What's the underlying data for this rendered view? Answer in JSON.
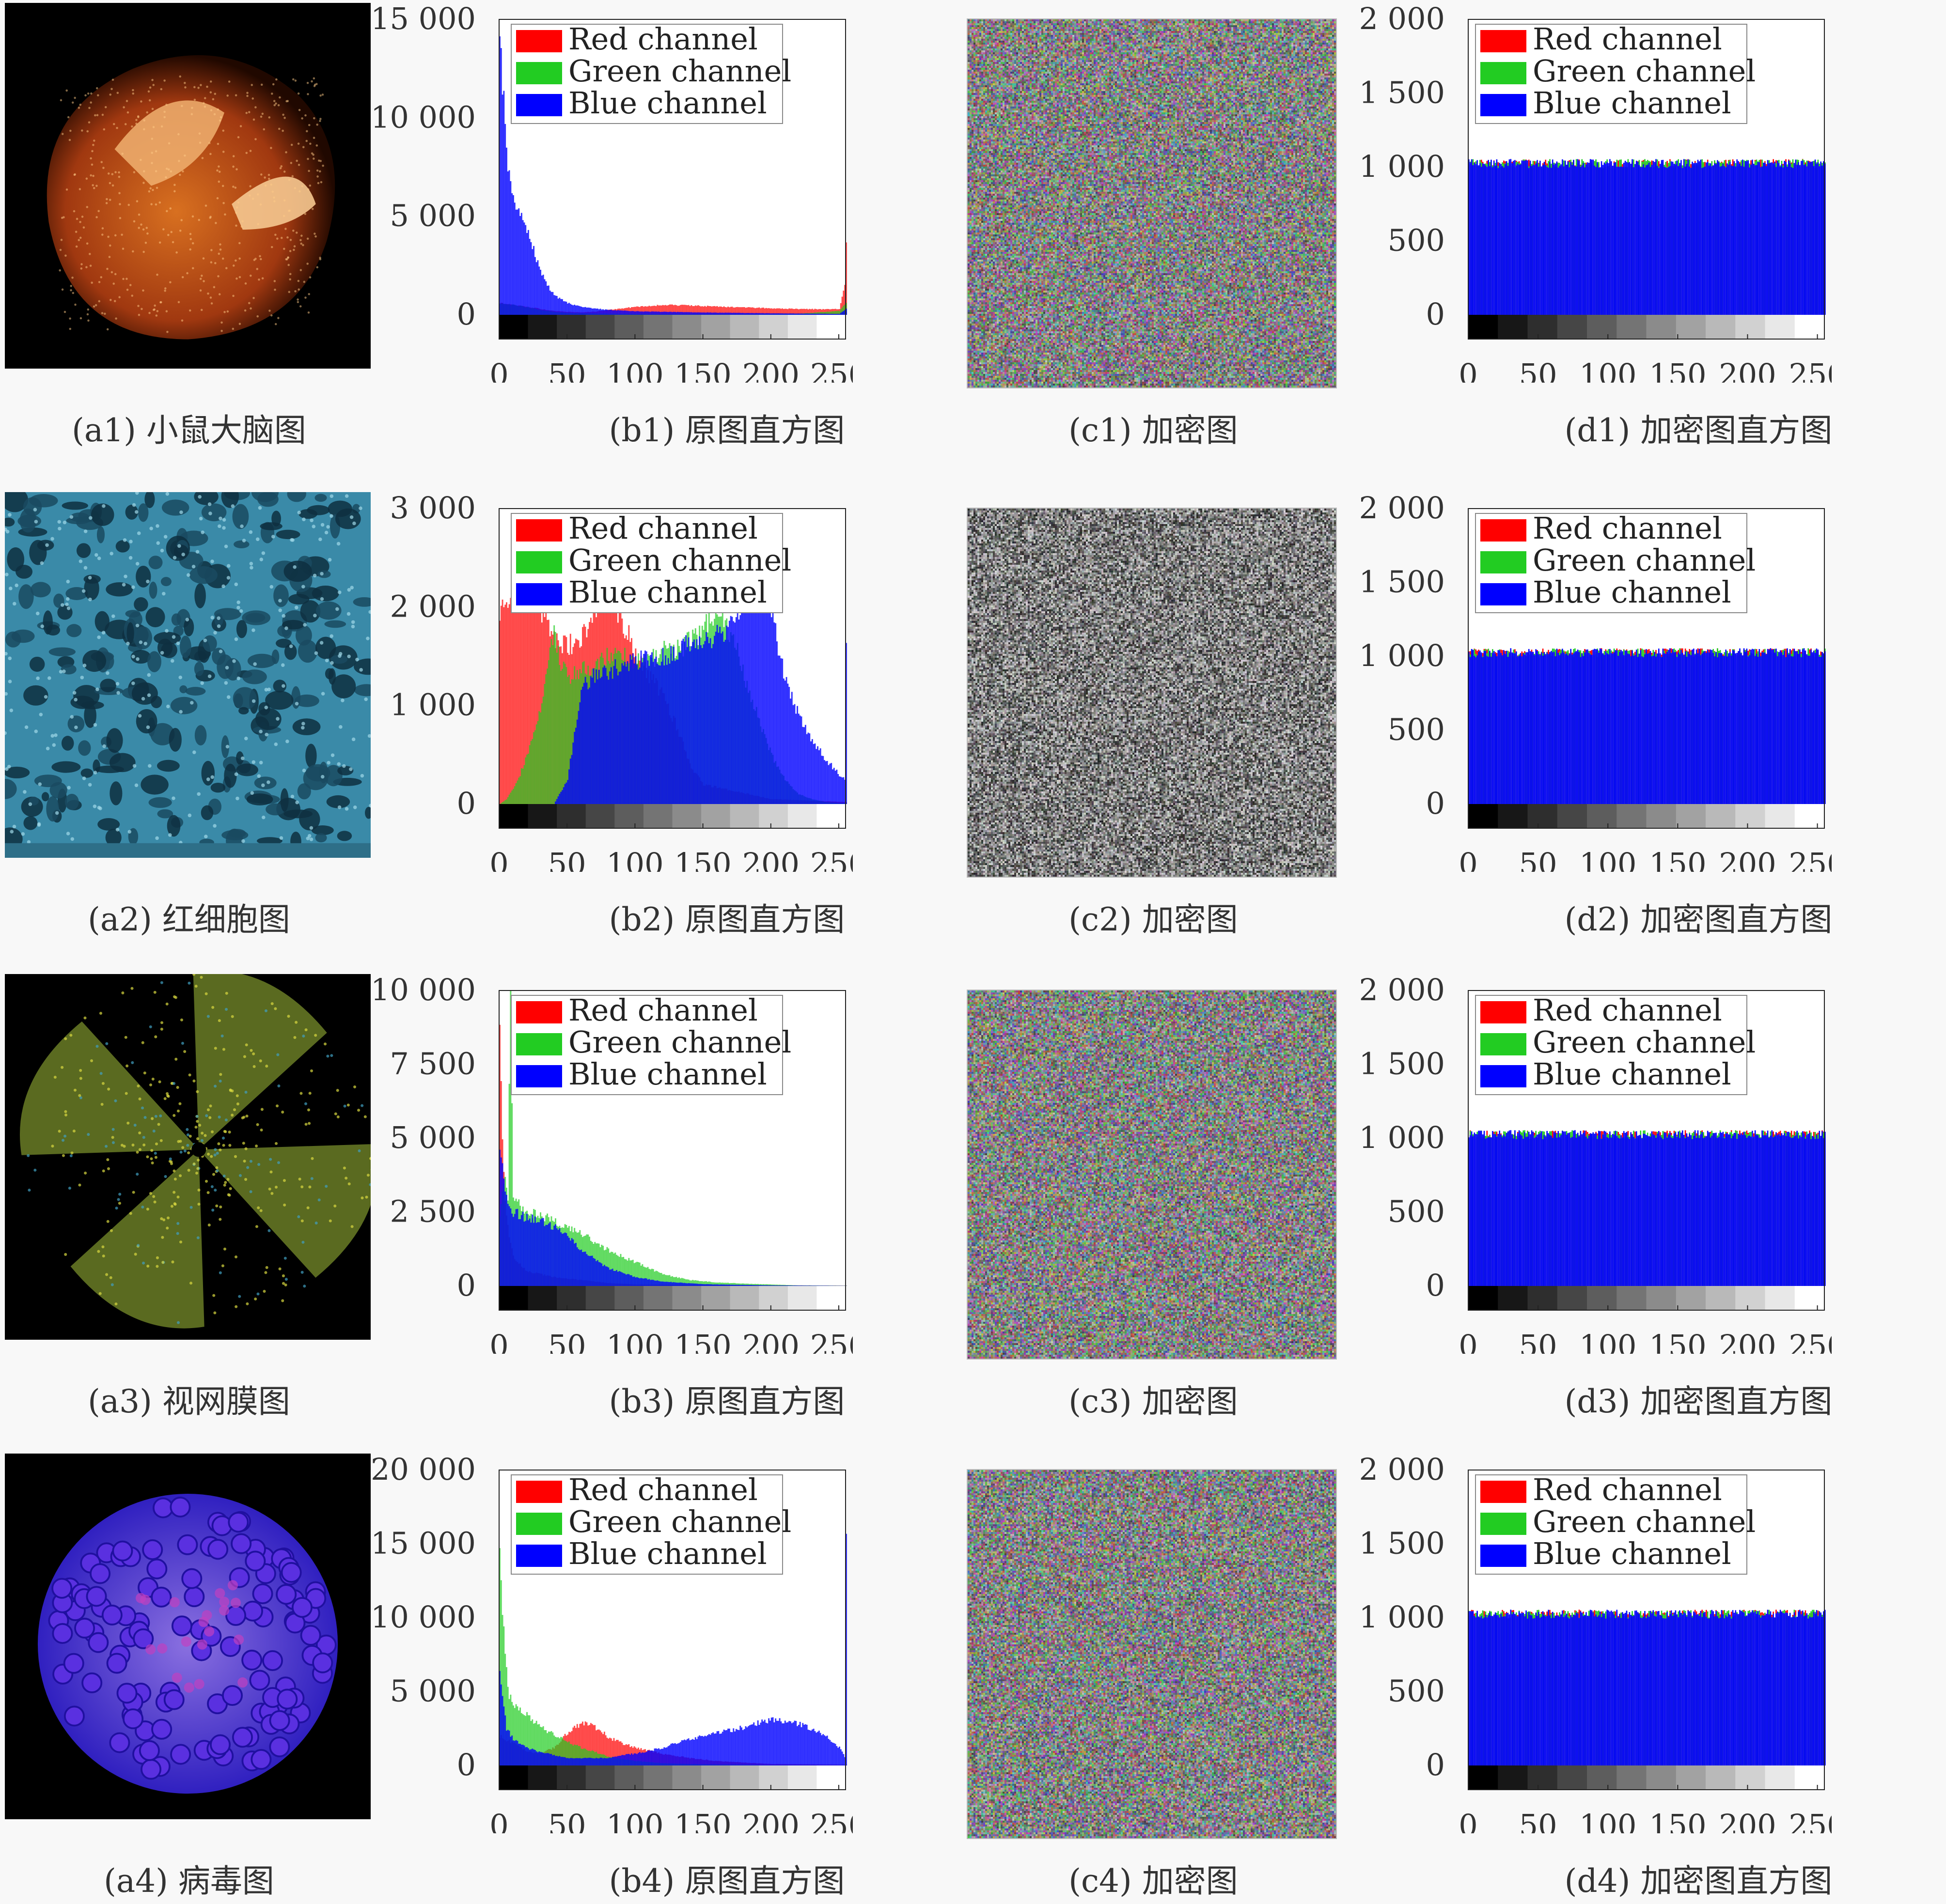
{
  "legend_labels": [
    "Red channel",
    "Green channel",
    "Blue channel"
  ],
  "legend_colors": [
    "#ff0000",
    "#22cc22",
    "#0000ff"
  ],
  "captions": [
    {
      "a": "(a1) 小鼠大脑图",
      "b": "(b1) 原图直方图",
      "c": "(c1) 加密图",
      "d": "(d1) 加密图直方图"
    },
    {
      "a": "(a2) 红细胞图",
      "b": "(b2) 原图直方图",
      "c": "(c2) 加密图",
      "d": "(d2) 加密图直方图"
    },
    {
      "a": "(a3) 视网膜图",
      "b": "(b3) 原图直方图",
      "c": "(c3) 加密图",
      "d": "(d3) 加密图直方图"
    },
    {
      "a": "(a4) 病毒图",
      "b": "(b4) 原图直方图",
      "c": "(c4) 加密图",
      "d": "(d4) 加密图直方图"
    }
  ],
  "chart_data": [
    {
      "id": "b1",
      "type": "bar",
      "xlim": [
        0,
        255
      ],
      "ylim": [
        0,
        15000
      ],
      "xticks": [
        0,
        50,
        100,
        150,
        200,
        250
      ],
      "xtick_labels": [
        "0",
        "50",
        "100",
        "150",
        "200",
        "250"
      ],
      "yticks": [
        0,
        5000,
        10000,
        15000
      ],
      "ytick_labels": [
        "0",
        "5 000",
        "10 000",
        "15 000"
      ],
      "legend": [
        "Red channel",
        "Green channel",
        "Blue channel"
      ],
      "series": [
        {
          "name": "Red channel",
          "x": [
            0,
            10,
            20,
            30,
            40,
            50,
            60,
            70,
            80,
            100,
            120,
            140,
            160,
            180,
            200,
            220,
            240,
            250,
            254,
            255
          ],
          "values": [
            600,
            500,
            400,
            300,
            200,
            150,
            130,
            160,
            250,
            400,
            500,
            480,
            420,
            380,
            330,
            300,
            280,
            300,
            1500,
            3500
          ]
        },
        {
          "name": "Green channel",
          "x": [
            0,
            10,
            20,
            30,
            40,
            50,
            60,
            80,
            100,
            140,
            180,
            220,
            250,
            255
          ],
          "values": [
            600,
            500,
            400,
            250,
            150,
            100,
            80,
            60,
            50,
            40,
            40,
            60,
            200,
            600
          ]
        },
        {
          "name": "Blue channel",
          "x": [
            0,
            2,
            5,
            8,
            10,
            15,
            20,
            25,
            30,
            35,
            40,
            50,
            60,
            80,
            100,
            150,
            200,
            250,
            255
          ],
          "values": [
            15000,
            12000,
            8000,
            6500,
            5700,
            5000,
            4300,
            3300,
            2200,
            1500,
            1000,
            600,
            400,
            250,
            180,
            120,
            80,
            50,
            300
          ]
        }
      ]
    },
    {
      "id": "d1",
      "type": "bar",
      "xlim": [
        0,
        255
      ],
      "ylim": [
        0,
        2000
      ],
      "xticks": [
        0,
        50,
        100,
        150,
        200,
        250
      ],
      "xtick_labels": [
        "0",
        "50",
        "100",
        "150",
        "200",
        "250"
      ],
      "yticks": [
        0,
        500,
        1000,
        1500,
        2000
      ],
      "ytick_labels": [
        "0",
        "500",
        "1 000",
        "1 500",
        "2 000"
      ],
      "legend": [
        "Red channel",
        "Green channel",
        "Blue channel"
      ],
      "series": [
        {
          "name": "Red channel",
          "x": [
            0,
            255
          ],
          "values": [
            1024,
            1024
          ]
        },
        {
          "name": "Green channel",
          "x": [
            0,
            255
          ],
          "values": [
            1024,
            1024
          ]
        },
        {
          "name": "Blue channel",
          "x": [
            0,
            255
          ],
          "values": [
            1024,
            1024
          ]
        }
      ]
    },
    {
      "id": "b2",
      "type": "bar",
      "xlim": [
        0,
        255
      ],
      "ylim": [
        0,
        3000
      ],
      "xticks": [
        0,
        50,
        100,
        150,
        200,
        250
      ],
      "xtick_labels": [
        "0",
        "50",
        "100",
        "150",
        "200",
        "250"
      ],
      "yticks": [
        0,
        1000,
        2000,
        3000
      ],
      "ytick_labels": [
        "0",
        "1 000",
        "2 000",
        "3 000"
      ],
      "legend": [
        "Red channel",
        "Green channel",
        "Blue channel"
      ],
      "series": [
        {
          "name": "Red channel",
          "x": [
            0,
            5,
            10,
            20,
            25,
            30,
            35,
            40,
            45,
            50,
            55,
            60,
            65,
            70,
            75,
            80,
            85,
            90,
            95,
            100,
            105,
            110,
            115,
            120,
            130,
            140,
            150,
            200,
            255
          ],
          "values": [
            2000,
            2100,
            2100,
            2100,
            2100,
            2000,
            1900,
            1700,
            1650,
            1600,
            1650,
            1700,
            1800,
            2000,
            2100,
            2100,
            2000,
            1850,
            1700,
            1550,
            1400,
            1300,
            1200,
            1100,
            800,
            400,
            200,
            50,
            20
          ]
        },
        {
          "name": "Green channel",
          "x": [
            0,
            5,
            10,
            15,
            20,
            25,
            30,
            35,
            40,
            45,
            50,
            60,
            70,
            80,
            90,
            100,
            110,
            120,
            130,
            140,
            150,
            155,
            160,
            165,
            170,
            175,
            180,
            190,
            200,
            210,
            220,
            230,
            240,
            250,
            255
          ],
          "values": [
            0,
            50,
            150,
            300,
            500,
            700,
            1000,
            1300,
            1800,
            1400,
            1300,
            1350,
            1400,
            1500,
            1500,
            1450,
            1450,
            1550,
            1550,
            1650,
            1750,
            1900,
            2000,
            1900,
            1700,
            1550,
            1300,
            900,
            500,
            250,
            100,
            50,
            20,
            10,
            10
          ]
        },
        {
          "name": "Blue channel",
          "x": [
            0,
            20,
            40,
            50,
            60,
            70,
            80,
            90,
            100,
            110,
            120,
            130,
            140,
            150,
            160,
            170,
            180,
            190,
            195,
            200,
            210,
            220,
            230,
            240,
            250,
            254,
            255
          ],
          "values": [
            0,
            0,
            0,
            250,
            1200,
            1300,
            1350,
            1400,
            1450,
            1500,
            1500,
            1550,
            1650,
            1700,
            1700,
            1800,
            2000,
            2200,
            2150,
            1900,
            1300,
            900,
            650,
            450,
            300,
            250,
            1600
          ]
        }
      ]
    },
    {
      "id": "d2",
      "type": "bar",
      "xlim": [
        0,
        255
      ],
      "ylim": [
        0,
        2000
      ],
      "xticks": [
        0,
        50,
        100,
        150,
        200,
        250
      ],
      "xtick_labels": [
        "0",
        "50",
        "100",
        "150",
        "200",
        "250"
      ],
      "yticks": [
        0,
        500,
        1000,
        1500,
        2000
      ],
      "ytick_labels": [
        "0",
        "500",
        "1 000",
        "1 500",
        "2 000"
      ],
      "legend": [
        "Red channel",
        "Green channel",
        "Blue channel"
      ],
      "series": [
        {
          "name": "Red channel",
          "x": [
            0,
            255
          ],
          "values": [
            1024,
            1024
          ]
        },
        {
          "name": "Green channel",
          "x": [
            0,
            255
          ],
          "values": [
            1024,
            1024
          ]
        },
        {
          "name": "Blue channel",
          "x": [
            0,
            255
          ],
          "values": [
            1024,
            1024
          ]
        }
      ]
    },
    {
      "id": "b3",
      "type": "bar",
      "xlim": [
        0,
        255
      ],
      "ylim": [
        0,
        10000
      ],
      "xticks": [
        0,
        50,
        100,
        150,
        200,
        250
      ],
      "xtick_labels": [
        "0",
        "50",
        "100",
        "150",
        "200",
        "250"
      ],
      "yticks": [
        0,
        2500,
        5000,
        7500,
        10000
      ],
      "ytick_labels": [
        "0",
        "2 500",
        "5 000",
        "7 500",
        "10 000"
      ],
      "legend": [
        "Red channel",
        "Green channel",
        "Blue channel"
      ],
      "series": [
        {
          "name": "Red channel",
          "x": [
            0,
            2,
            4,
            6,
            8,
            10,
            20,
            40,
            60,
            80,
            100,
            255
          ],
          "values": [
            9500,
            5000,
            3000,
            2000,
            1500,
            1000,
            500,
            300,
            200,
            100,
            50,
            10
          ]
        },
        {
          "name": "Green channel",
          "x": [
            0,
            2,
            4,
            6,
            8,
            10,
            20,
            30,
            40,
            50,
            60,
            70,
            80,
            100,
            120,
            140,
            160,
            180,
            200,
            220,
            255
          ],
          "values": [
            2200,
            3000,
            3500,
            2800,
            10000,
            3000,
            2500,
            2400,
            2200,
            2000,
            1800,
            1500,
            1200,
            800,
            400,
            200,
            120,
            80,
            50,
            20,
            10
          ]
        },
        {
          "name": "Blue channel",
          "x": [
            0,
            2,
            5,
            10,
            20,
            30,
            40,
            50,
            60,
            70,
            80,
            100,
            120,
            150,
            200,
            255
          ],
          "values": [
            4500,
            4000,
            3000,
            2500,
            2300,
            2200,
            2000,
            1700,
            1200,
            900,
            600,
            300,
            150,
            60,
            20,
            5
          ]
        }
      ]
    },
    {
      "id": "d3",
      "type": "bar",
      "xlim": [
        0,
        255
      ],
      "ylim": [
        0,
        2000
      ],
      "xticks": [
        0,
        50,
        100,
        150,
        200,
        250
      ],
      "xtick_labels": [
        "0",
        "50",
        "100",
        "150",
        "200",
        "250"
      ],
      "yticks": [
        0,
        500,
        1000,
        1500,
        2000
      ],
      "ytick_labels": [
        "0",
        "500",
        "1 000",
        "1 500",
        "2 000"
      ],
      "legend": [
        "Red channel",
        "Green channel",
        "Blue channel"
      ],
      "series": [
        {
          "name": "Red channel",
          "x": [
            0,
            255
          ],
          "values": [
            1024,
            1024
          ]
        },
        {
          "name": "Green channel",
          "x": [
            0,
            255
          ],
          "values": [
            1024,
            1024
          ]
        },
        {
          "name": "Blue channel",
          "x": [
            0,
            255
          ],
          "values": [
            1024,
            1024
          ]
        }
      ]
    },
    {
      "id": "b4",
      "type": "bar",
      "xlim": [
        0,
        255
      ],
      "ylim": [
        0,
        20000
      ],
      "xticks": [
        0,
        50,
        100,
        150,
        200,
        250
      ],
      "xtick_labels": [
        "0",
        "50",
        "100",
        "150",
        "200",
        "250"
      ],
      "yticks": [
        0,
        5000,
        10000,
        15000,
        20000
      ],
      "ytick_labels": [
        "0",
        "5 000",
        "10 000",
        "15 000",
        "20 000"
      ],
      "legend": [
        "Red channel",
        "Green channel",
        "Blue channel"
      ],
      "series": [
        {
          "name": "Red channel",
          "x": [
            0,
            10,
            20,
            30,
            40,
            45,
            50,
            55,
            60,
            65,
            70,
            75,
            80,
            90,
            100,
            120,
            140,
            160,
            200,
            255
          ],
          "values": [
            2000,
            1500,
            1000,
            800,
            1200,
            1700,
            2200,
            2600,
            2800,
            2800,
            2600,
            2300,
            1900,
            1500,
            1200,
            800,
            500,
            300,
            100,
            50
          ]
        },
        {
          "name": "Green channel",
          "x": [
            0,
            2,
            4,
            6,
            10,
            15,
            20,
            25,
            30,
            40,
            50,
            60,
            70,
            80,
            100,
            120,
            150,
            200,
            255
          ],
          "values": [
            14000,
            10000,
            8000,
            5000,
            4200,
            3800,
            3500,
            3000,
            2600,
            2100,
            1600,
            1200,
            900,
            600,
            300,
            150,
            80,
            30,
            20
          ]
        },
        {
          "name": "Blue channel",
          "x": [
            0,
            5,
            10,
            20,
            30,
            40,
            50,
            60,
            70,
            80,
            90,
            100,
            110,
            120,
            130,
            140,
            150,
            160,
            170,
            180,
            190,
            200,
            210,
            220,
            230,
            240,
            250,
            254,
            255
          ],
          "values": [
            6000,
            2500,
            1800,
            1200,
            900,
            700,
            500,
            500,
            500,
            500,
            700,
            800,
            1000,
            1200,
            1500,
            1800,
            2000,
            2200,
            2400,
            2600,
            2900,
            3100,
            3000,
            2800,
            2500,
            2000,
            1200,
            600,
            16000
          ]
        }
      ]
    },
    {
      "id": "d4",
      "type": "bar",
      "xlim": [
        0,
        255
      ],
      "ylim": [
        0,
        2000
      ],
      "xticks": [
        0,
        50,
        100,
        150,
        200,
        250
      ],
      "xtick_labels": [
        "0",
        "50",
        "100",
        "150",
        "200",
        "250"
      ],
      "yticks": [
        0,
        500,
        1000,
        1500,
        2000
      ],
      "ytick_labels": [
        "0",
        "500",
        "1 000",
        "1 500",
        "2 000"
      ],
      "legend": [
        "Red channel",
        "Green channel",
        "Blue channel"
      ],
      "series": [
        {
          "name": "Red channel",
          "x": [
            0,
            255
          ],
          "values": [
            1024,
            1024
          ]
        },
        {
          "name": "Green channel",
          "x": [
            0,
            255
          ],
          "values": [
            1024,
            1024
          ]
        },
        {
          "name": "Blue channel",
          "x": [
            0,
            255
          ],
          "values": [
            1024,
            1024
          ]
        }
      ]
    }
  ]
}
